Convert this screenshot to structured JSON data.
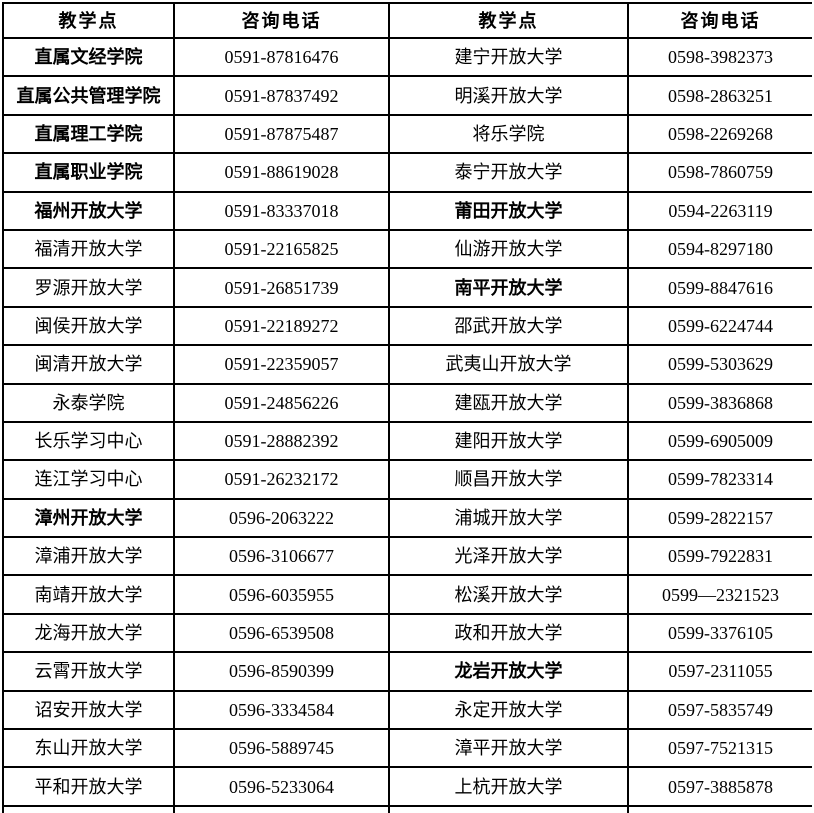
{
  "table": {
    "headers": [
      "教学点",
      "咨询电话",
      "教学点",
      "咨询电话"
    ],
    "rows": [
      {
        "left_name": "直属文经学院",
        "left_bold": true,
        "left_phone": "0591-87816476",
        "right_name": "建宁开放大学",
        "right_bold": false,
        "right_phone": "0598-3982373"
      },
      {
        "left_name": "直属公共管理学院",
        "left_bold": true,
        "left_phone": "0591-87837492",
        "right_name": "明溪开放大学",
        "right_bold": false,
        "right_phone": "0598-2863251"
      },
      {
        "left_name": "直属理工学院",
        "left_bold": true,
        "left_phone": "0591-87875487",
        "right_name": "将乐学院",
        "right_bold": false,
        "right_phone": "0598-2269268"
      },
      {
        "left_name": "直属职业学院",
        "left_bold": true,
        "left_phone": "0591-88619028",
        "right_name": "泰宁开放大学",
        "right_bold": false,
        "right_phone": "0598-7860759"
      },
      {
        "left_name": "福州开放大学",
        "left_bold": true,
        "left_phone": "0591-83337018",
        "right_name": "莆田开放大学",
        "right_bold": true,
        "right_phone": "0594-2263119"
      },
      {
        "left_name": "福清开放大学",
        "left_bold": false,
        "left_phone": "0591-22165825",
        "right_name": "仙游开放大学",
        "right_bold": false,
        "right_phone": "0594-8297180"
      },
      {
        "left_name": "罗源开放大学",
        "left_bold": false,
        "left_phone": "0591-26851739",
        "right_name": "南平开放大学",
        "right_bold": true,
        "right_phone": "0599-8847616"
      },
      {
        "left_name": "闽侯开放大学",
        "left_bold": false,
        "left_phone": "0591-22189272",
        "right_name": "邵武开放大学",
        "right_bold": false,
        "right_phone": "0599-6224744"
      },
      {
        "left_name": "闽清开放大学",
        "left_bold": false,
        "left_phone": "0591-22359057",
        "right_name": "武夷山开放大学",
        "right_bold": false,
        "right_phone": "0599-5303629"
      },
      {
        "left_name": "永泰学院",
        "left_bold": false,
        "left_phone": "0591-24856226",
        "right_name": "建瓯开放大学",
        "right_bold": false,
        "right_phone": "0599-3836868"
      },
      {
        "left_name": "长乐学习中心",
        "left_bold": false,
        "left_phone": "0591-28882392",
        "right_name": "建阳开放大学",
        "right_bold": false,
        "right_phone": "0599-6905009"
      },
      {
        "left_name": "连江学习中心",
        "left_bold": false,
        "left_phone": "0591-26232172",
        "right_name": "顺昌开放大学",
        "right_bold": false,
        "right_phone": "0599-7823314"
      },
      {
        "left_name": "漳州开放大学",
        "left_bold": true,
        "left_phone": "0596-2063222",
        "right_name": "浦城开放大学",
        "right_bold": false,
        "right_phone": "0599-2822157"
      },
      {
        "left_name": "漳浦开放大学",
        "left_bold": false,
        "left_phone": "0596-3106677",
        "right_name": "光泽开放大学",
        "right_bold": false,
        "right_phone": "0599-7922831"
      },
      {
        "left_name": "南靖开放大学",
        "left_bold": false,
        "left_phone": "0596-6035955",
        "right_name": "松溪开放大学",
        "right_bold": false,
        "right_phone": "0599—2321523"
      },
      {
        "left_name": "龙海开放大学",
        "left_bold": false,
        "left_phone": "0596-6539508",
        "right_name": "政和开放大学",
        "right_bold": false,
        "right_phone": "0599-3376105"
      },
      {
        "left_name": "云霄开放大学",
        "left_bold": false,
        "left_phone": "0596-8590399",
        "right_name": "龙岩开放大学",
        "right_bold": true,
        "right_phone": "0597-2311055"
      },
      {
        "left_name": "诏安开放大学",
        "left_bold": false,
        "left_phone": "0596-3334584",
        "right_name": "永定开放大学",
        "right_bold": false,
        "right_phone": "0597-5835749"
      },
      {
        "left_name": "东山开放大学",
        "left_bold": false,
        "left_phone": "0596-5889745",
        "right_name": "漳平开放大学",
        "right_bold": false,
        "right_phone": "0597-7521315"
      },
      {
        "left_name": "平和开放大学",
        "left_bold": false,
        "left_phone": "0596-5233064",
        "right_name": "上杭开放大学",
        "right_bold": false,
        "right_phone": "0597-3885878"
      }
    ]
  }
}
